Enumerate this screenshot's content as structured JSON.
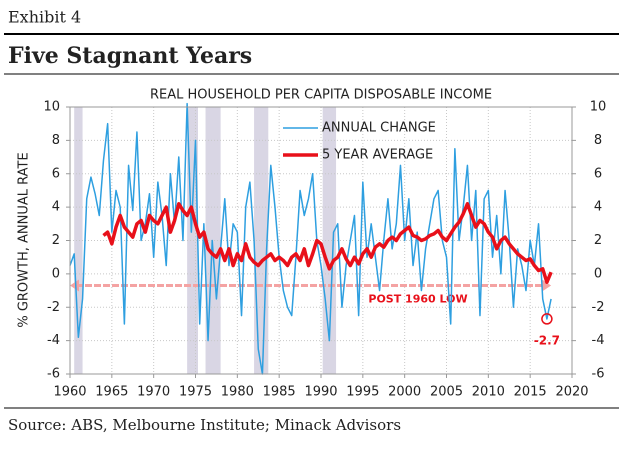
{
  "header": {
    "exhibit": "Exhibit 4",
    "title": "Five Stagnant Years"
  },
  "source": "Source: ABS, Melbourne Institute; Minack Advisors",
  "chart_data": {
    "type": "line",
    "title": "REAL HOUSEHOLD PER CAPITA DISPOSABLE INCOME",
    "y_label": "% GROWTH, ANNUAL RATE",
    "x": [
      1960,
      1960.5,
      1961,
      1961.5,
      1962,
      1962.5,
      1963,
      1963.5,
      1964,
      1964.5,
      1965,
      1965.5,
      1966,
      1966.5,
      1967,
      1967.5,
      1968,
      1968.5,
      1969,
      1969.5,
      1970,
      1970.5,
      1971,
      1971.5,
      1972,
      1972.5,
      1973,
      1973.5,
      1974,
      1974.5,
      1975,
      1975.5,
      1976,
      1976.5,
      1977,
      1977.5,
      1978,
      1978.5,
      1979,
      1979.5,
      1980,
      1980.5,
      1981,
      1981.5,
      1982,
      1982.5,
      1983,
      1983.5,
      1984,
      1984.5,
      1985,
      1985.5,
      1986,
      1986.5,
      1987,
      1987.5,
      1988,
      1988.5,
      1989,
      1989.5,
      1990,
      1990.5,
      1991,
      1991.5,
      1992,
      1992.5,
      1993,
      1993.5,
      1994,
      1994.5,
      1995,
      1995.5,
      1996,
      1996.5,
      1997,
      1997.5,
      1998,
      1998.5,
      1999,
      1999.5,
      2000,
      2000.5,
      2001,
      2001.5,
      2002,
      2002.5,
      2003,
      2003.5,
      2004,
      2004.5,
      2005,
      2005.5,
      2006,
      2006.5,
      2007,
      2007.5,
      2008,
      2008.5,
      2009,
      2009.5,
      2010,
      2010.5,
      2011,
      2011.5,
      2012,
      2012.5,
      2013,
      2013.5,
      2014,
      2014.5,
      2015,
      2015.5,
      2016,
      2016.5,
      2017,
      2017.5
    ],
    "series": [
      {
        "name": "ANNUAL CHANGE",
        "color": "#2e9fe0",
        "width": 1.5,
        "values": [
          0.5,
          1.2,
          -3.8,
          -1.5,
          4.5,
          5.8,
          4.8,
          3.5,
          6.8,
          9.0,
          2.5,
          5.0,
          4.0,
          -3.0,
          6.5,
          3.8,
          8.5,
          2.0,
          3.0,
          4.8,
          1.0,
          5.5,
          3.5,
          0.5,
          6.0,
          3.0,
          7.0,
          2.0,
          10.2,
          2.5,
          8.0,
          -3.0,
          3.0,
          -4.0,
          2.0,
          -1.5,
          1.5,
          4.5,
          0.5,
          3.0,
          2.5,
          -2.5,
          4.0,
          5.5,
          2.0,
          -4.5,
          -6.0,
          1.5,
          6.5,
          4.0,
          1.0,
          -1.0,
          -2.0,
          -2.5,
          1.0,
          5.0,
          3.5,
          4.5,
          6.0,
          2.0,
          0.5,
          -1.5,
          -4.0,
          2.5,
          3.0,
          -2.0,
          0.5,
          2.0,
          3.5,
          -2.5,
          5.5,
          1.0,
          3.0,
          1.0,
          -1.0,
          2.0,
          4.5,
          1.5,
          3.0,
          6.5,
          2.0,
          4.5,
          0.5,
          2.5,
          -1.0,
          1.5,
          3.0,
          4.5,
          5.0,
          2.0,
          1.0,
          -3.0,
          7.5,
          2.0,
          4.0,
          6.5,
          2.0,
          5.0,
          -2.5,
          4.5,
          5.0,
          1.0,
          3.5,
          0.0,
          5.0,
          2.0,
          -2.0,
          1.5,
          0.5,
          -1.0,
          2.0,
          0.5,
          3.0,
          -1.5,
          -2.7,
          -1.5
        ]
      },
      {
        "name": "5 YEAR AVERAGE",
        "color": "#e8101a",
        "width": 3.5,
        "values": [
          null,
          null,
          null,
          null,
          null,
          null,
          null,
          null,
          2.3,
          2.5,
          1.8,
          2.8,
          3.5,
          2.8,
          2.5,
          2.2,
          3.0,
          3.2,
          2.5,
          3.5,
          3.2,
          3.0,
          3.5,
          4.0,
          2.5,
          3.2,
          4.2,
          3.8,
          3.5,
          4.0,
          3.0,
          2.2,
          2.5,
          1.5,
          1.2,
          1.0,
          1.5,
          0.8,
          1.5,
          0.5,
          1.2,
          0.8,
          1.8,
          1.0,
          0.7,
          0.5,
          0.8,
          1.0,
          1.2,
          0.8,
          1.0,
          0.8,
          0.5,
          1.0,
          1.2,
          0.8,
          1.5,
          0.5,
          1.2,
          2.0,
          1.8,
          1.0,
          0.3,
          0.8,
          1.0,
          1.5,
          0.9,
          0.5,
          1.0,
          0.6,
          1.2,
          1.5,
          1.0,
          1.6,
          1.8,
          1.6,
          2.0,
          2.2,
          2.0,
          2.4,
          2.6,
          2.8,
          2.3,
          2.2,
          2.0,
          2.1,
          2.3,
          2.4,
          2.6,
          2.2,
          2.0,
          2.4,
          2.8,
          3.1,
          3.6,
          4.2,
          3.5,
          2.8,
          3.2,
          3.0,
          2.5,
          2.2,
          1.5,
          2.0,
          2.2,
          1.8,
          1.5,
          1.2,
          1.0,
          0.8,
          0.9,
          0.5,
          0.2,
          0.3,
          -0.5,
          0.1
        ]
      }
    ],
    "xlim": [
      1960,
      2020
    ],
    "xticks": [
      1960,
      1965,
      1970,
      1975,
      1980,
      1985,
      1990,
      1995,
      2000,
      2005,
      2010,
      2015,
      2020
    ],
    "ylim": [
      -6,
      10
    ],
    "yticks": [
      -6,
      -4,
      -2,
      0,
      2,
      4,
      6,
      8,
      10
    ],
    "y2lim": [
      -6,
      10
    ],
    "y2ticks": [
      -6,
      -4,
      -2,
      0,
      2,
      4,
      6,
      8,
      10
    ],
    "grid": true,
    "legend": "top-center",
    "shaded_periods": [
      [
        1960.5,
        1961.5
      ],
      [
        1974,
        1975.3
      ],
      [
        1976.2,
        1978
      ],
      [
        1982,
        1983.7
      ],
      [
        1990.2,
        1991.8
      ]
    ],
    "shade_color": "#d9d6e4",
    "low_line": {
      "text": "POST 1960 LOW",
      "y": -0.7,
      "x": [
        1960,
        2017.5
      ],
      "color": "#f4a3a3"
    },
    "point_annotation": {
      "x": 2017,
      "value": -2.7,
      "label": "-2.7",
      "color": "#e8101a"
    }
  }
}
